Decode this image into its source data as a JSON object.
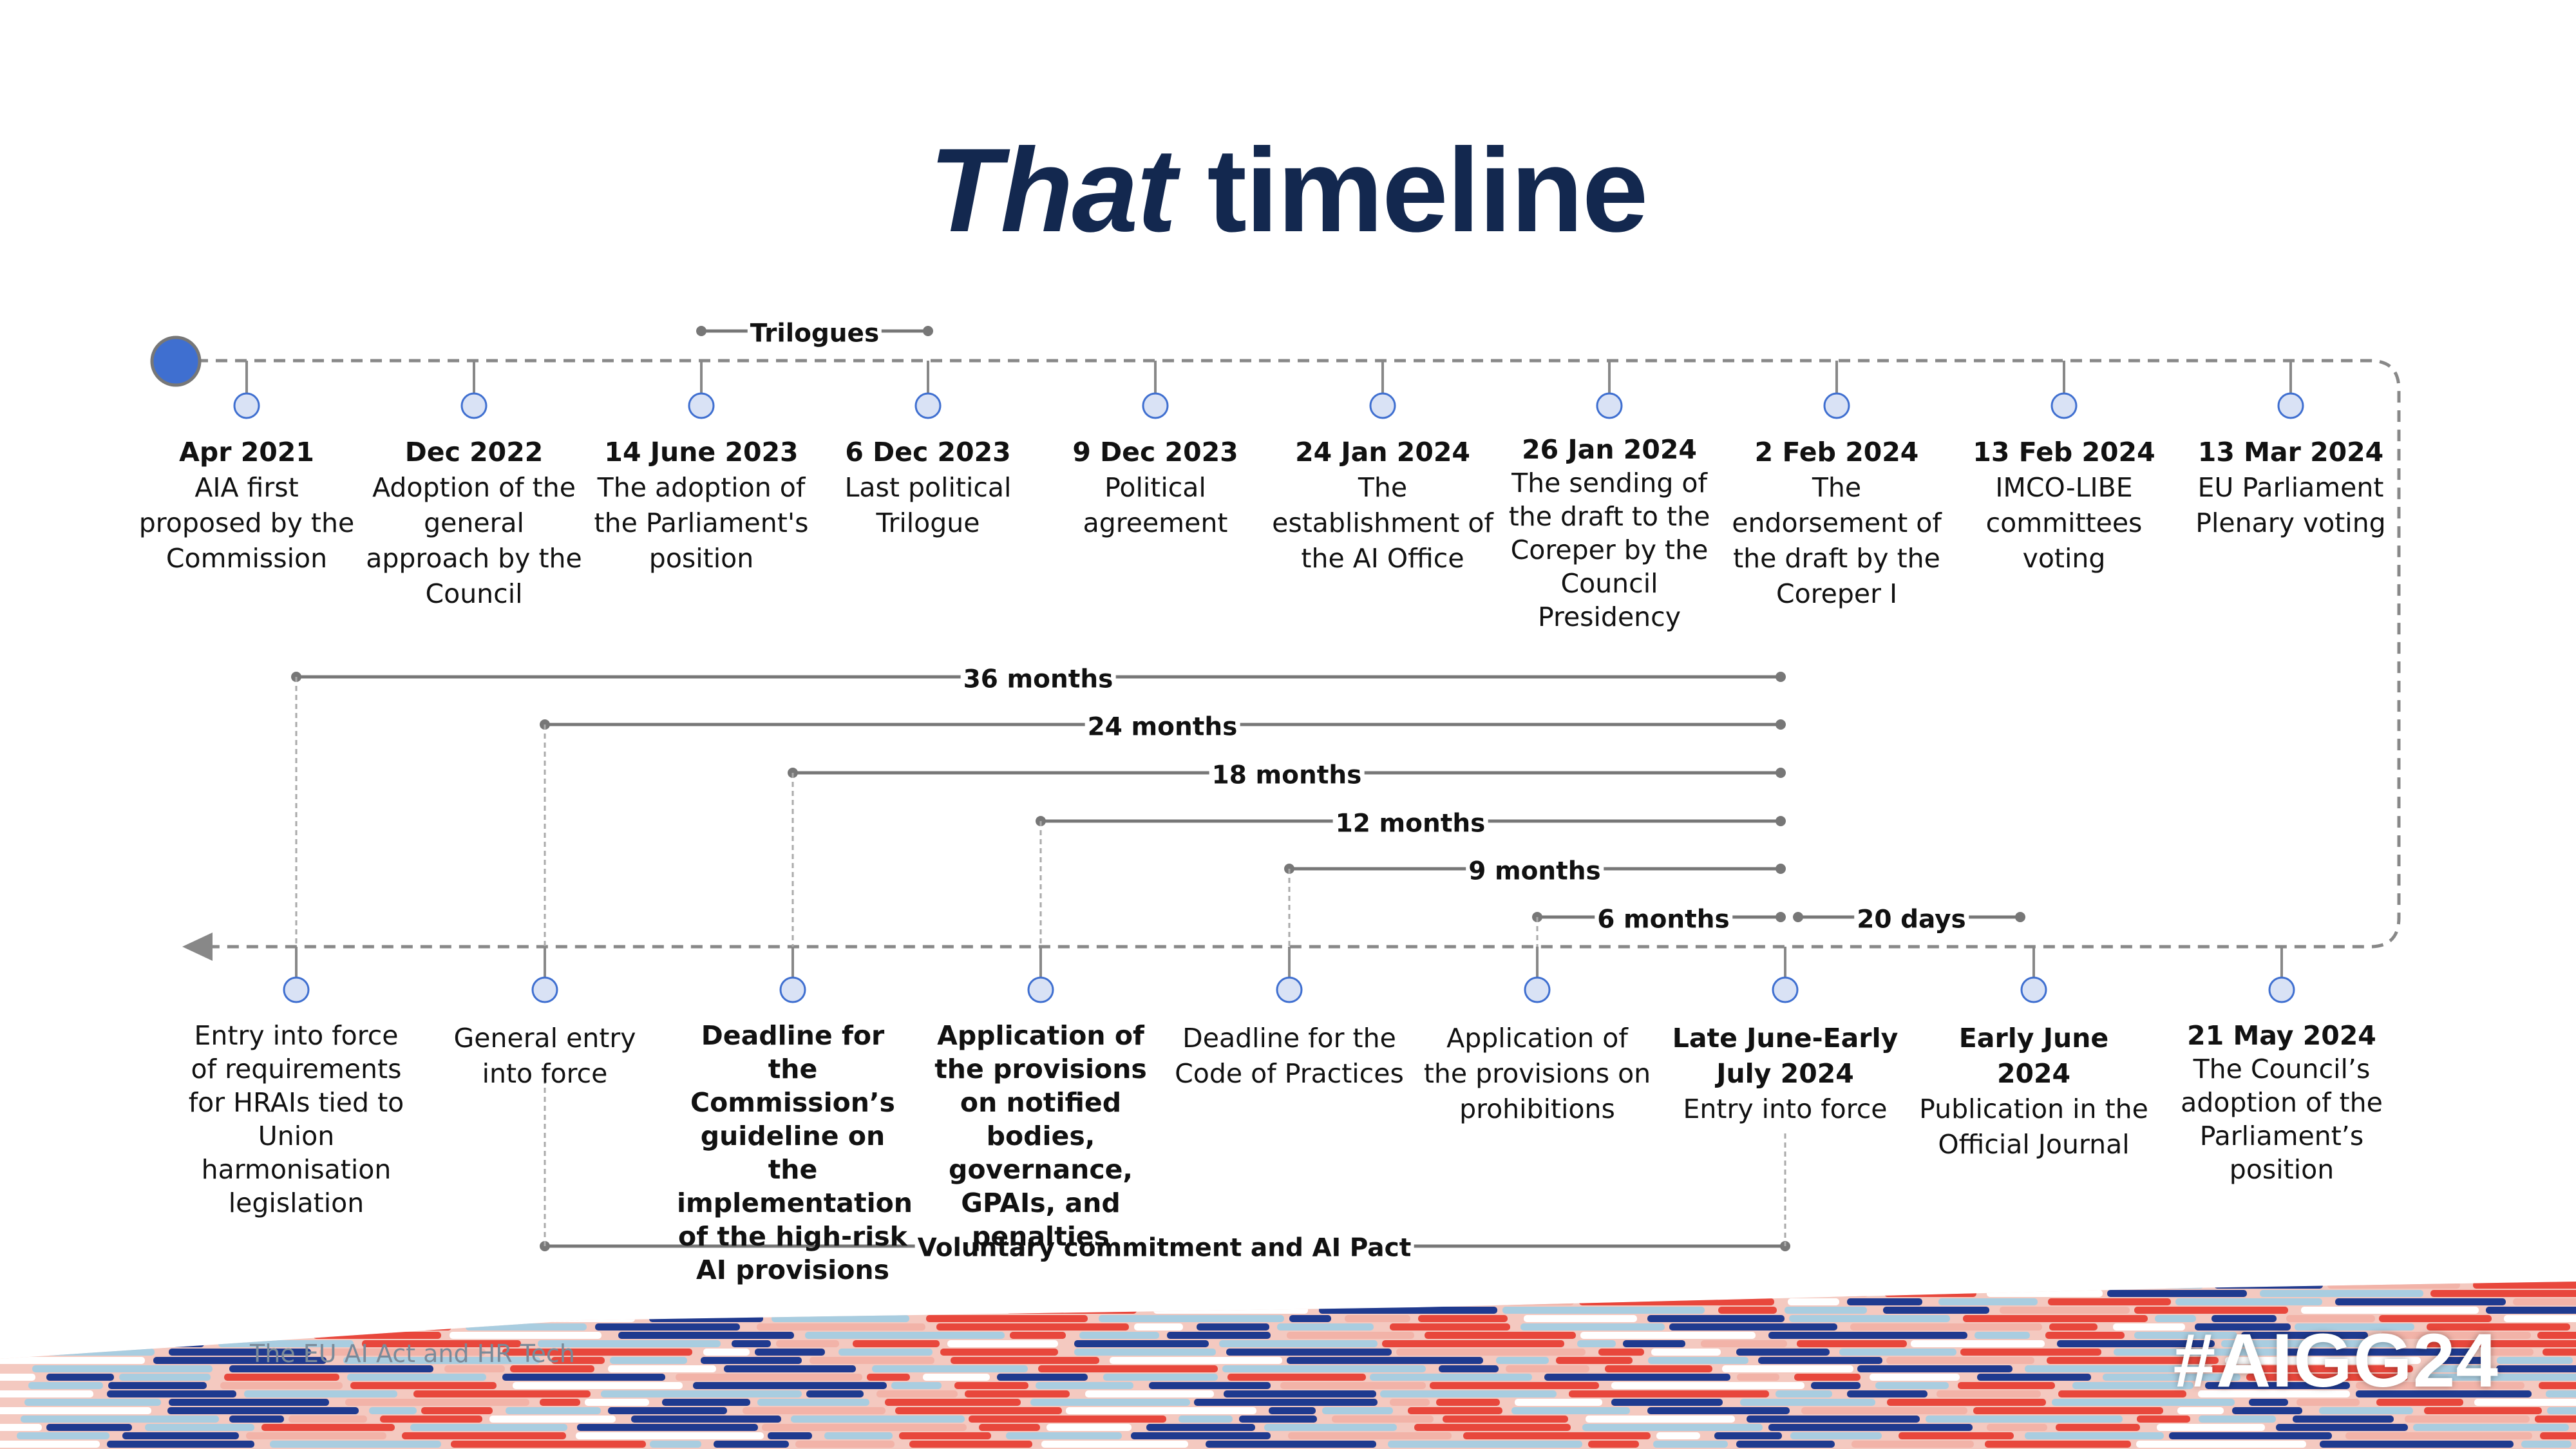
{
  "title": {
    "em": "That",
    "rest": "timeline"
  },
  "trilogues_label": "Trilogues",
  "top_milestones": [
    {
      "date": "Apr 2021",
      "desc": "AIA first proposed by the Commission"
    },
    {
      "date": "Dec 2022",
      "desc": "Adoption of the general approach by the Council"
    },
    {
      "date": "14 June 2023",
      "desc": "The adoption of the Parliament's position"
    },
    {
      "date": "6 Dec 2023",
      "desc": "Last political Trilogue"
    },
    {
      "date": "9 Dec 2023",
      "desc": "Political agreement"
    },
    {
      "date": "24 Jan 2024",
      "desc": "The establishment of the AI Office"
    },
    {
      "date": "26 Jan 2024",
      "desc": "The sending of the draft to the Coreper by the Council Presidency"
    },
    {
      "date": "2 Feb 2024",
      "desc": "The endorsement of the draft by the Coreper I"
    },
    {
      "date": "13 Feb 2024",
      "desc": "IMCO-LIBE committees voting"
    },
    {
      "date": "13 Mar 2024",
      "desc": "EU Parliament Plenary voting"
    }
  ],
  "spans": [
    {
      "label": "36 months"
    },
    {
      "label": "24 months"
    },
    {
      "label": "18 months"
    },
    {
      "label": "12 months"
    },
    {
      "label": "9 months"
    },
    {
      "label": "6 months"
    },
    {
      "label": "20 days"
    }
  ],
  "bottom_milestones": [
    {
      "date": "",
      "desc": "Entry into force of requirements for HRAIs tied to Union harmonisation legislation"
    },
    {
      "date": "",
      "desc": "General entry into force"
    },
    {
      "date": "",
      "desc": "Deadline for the Commission’s guideline on the implementation of the high-risk AI provisions"
    },
    {
      "date": "",
      "desc": "Application of the provisions on notified bodies, governance, GPAIs, and penalties"
    },
    {
      "date": "",
      "desc": "Deadline for the Code of Practices"
    },
    {
      "date": "",
      "desc": "Application of the provisions on prohibitions"
    },
    {
      "date": "Late June-Early July 2024",
      "desc": "Entry into force"
    },
    {
      "date": "Early June 2024",
      "desc": "Publication in the Official Journal"
    },
    {
      "date": "21 May 2024",
      "desc": "The Council’s adoption of the Parliament’s position"
    }
  ],
  "voluntary_label": "Voluntary commitment and AI Pact",
  "footer": {
    "text": "The EU AI Act and HR Tech",
    "hashtag": "#AIGG24"
  },
  "colors": {
    "title": "#13284f",
    "accent_blue": "#3f6fd0",
    "node_fill": "#d9e2f5",
    "line_grey": "#777777",
    "band_navy": "#1f3a8f",
    "band_red": "#e8473c",
    "band_lightblue": "#a9cde0"
  }
}
